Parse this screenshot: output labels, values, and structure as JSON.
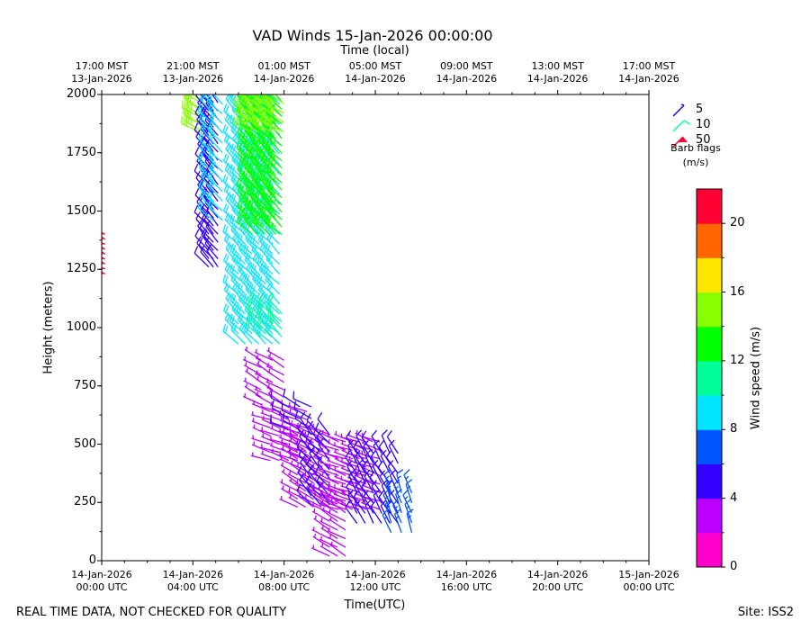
{
  "chart_data": {
    "type": "wind_barbs",
    "title": "VAD Winds 15-Jan-2026 00:00:00",
    "xlabel": "Time(UTC)",
    "top_xlabel": "Time (local)",
    "ylabel": "Height (meters)",
    "xlim_hours": [
      0,
      24
    ],
    "ylim": [
      0,
      2000
    ],
    "y_ticks": [
      "0",
      "250",
      "500",
      "750",
      "1000",
      "1250",
      "1500",
      "1750",
      "2000"
    ],
    "x_ticks_bottom": [
      {
        "l1": "14-Jan-2026",
        "l2": "00:00 UTC"
      },
      {
        "l1": "14-Jan-2026",
        "l2": "04:00 UTC"
      },
      {
        "l1": "14-Jan-2026",
        "l2": "08:00 UTC"
      },
      {
        "l1": "14-Jan-2026",
        "l2": "12:00 UTC"
      },
      {
        "l1": "14-Jan-2026",
        "l2": "16:00 UTC"
      },
      {
        "l1": "14-Jan-2026",
        "l2": "20:00 UTC"
      },
      {
        "l1": "15-Jan-2026",
        "l2": "00:00 UTC"
      }
    ],
    "x_ticks_top": [
      {
        "l1": "17:00 MST",
        "l2": "13-Jan-2026"
      },
      {
        "l1": "21:00 MST",
        "l2": "13-Jan-2026"
      },
      {
        "l1": "01:00 MST",
        "l2": "14-Jan-2026"
      },
      {
        "l1": "05:00 MST",
        "l2": "14-Jan-2026"
      },
      {
        "l1": "09:00 MST",
        "l2": "14-Jan-2026"
      },
      {
        "l1": "13:00 MST",
        "l2": "14-Jan-2026"
      },
      {
        "l1": "17:00 MST",
        "l2": "14-Jan-2026"
      }
    ],
    "legend": {
      "entries": [
        {
          "label": "5",
          "color": "#2200ff"
        },
        {
          "label": "10",
          "color": "#00ff99"
        },
        {
          "label": "50",
          "color": "#ff0033"
        }
      ],
      "note_line1": "Barb flags",
      "note_line2": "(m/s)"
    },
    "colorbar": {
      "label": "Wind speed (m/s)",
      "min": 0,
      "max": 22,
      "ticks": [
        "0",
        "4",
        "8",
        "12",
        "16",
        "20"
      ],
      "colors": [
        "#ff00cc",
        "#bb00ff",
        "#3300ff",
        "#0055ff",
        "#00e5ff",
        "#00ff99",
        "#00ff00",
        "#88ff00",
        "#ffe600",
        "#ff6600",
        "#ff0033"
      ]
    },
    "barb_groups": [
      {
        "name": "early-red",
        "t0": 0.05,
        "t1": 0.15,
        "h0": 1230,
        "h1": 1400,
        "speed": 21,
        "dir": 300,
        "cols": 2,
        "rows": 9
      },
      {
        "name": "green-top-left",
        "t0": 4.3,
        "t1": 4.45,
        "h0": 1840,
        "h1": 2000,
        "speed": 15,
        "dir": 300,
        "cols": 2,
        "rows": 6
      },
      {
        "name": "blue-column",
        "t0": 4.7,
        "t1": 5.1,
        "h0": 1260,
        "h1": 2000,
        "speed": 5,
        "dir": 320,
        "cols": 3,
        "rows": 22
      },
      {
        "name": "cyan-column",
        "t0": 4.9,
        "t1": 5.3,
        "h0": 1460,
        "h1": 2000,
        "speed": 9,
        "dir": 315,
        "cols": 2,
        "rows": 14
      },
      {
        "name": "cyan-wide",
        "t0": 6.0,
        "t1": 7.8,
        "h0": 930,
        "h1": 2000,
        "speed": 9,
        "dir": 315,
        "cols": 7,
        "rows": 26
      },
      {
        "name": "green-wide",
        "t0": 6.6,
        "t1": 7.9,
        "h0": 1400,
        "h1": 2000,
        "speed": 13,
        "dir": 315,
        "cols": 6,
        "rows": 20
      },
      {
        "name": "lime-top",
        "t0": 6.6,
        "t1": 8.0,
        "h0": 1840,
        "h1": 2000,
        "speed": 15,
        "dir": 300,
        "cols": 6,
        "rows": 5
      },
      {
        "name": "green-low",
        "t0": 7.0,
        "t1": 7.9,
        "h0": 960,
        "h1": 1060,
        "speed": 11,
        "dir": 315,
        "cols": 3,
        "rows": 4
      },
      {
        "name": "purple-lower",
        "t0": 7.0,
        "t1": 8.0,
        "h0": 670,
        "h1": 860,
        "speed": 3,
        "dir": 300,
        "cols": 3,
        "rows": 7
      },
      {
        "name": "magenta-mid",
        "t0": 7.4,
        "t1": 9.0,
        "h0": 430,
        "h1": 640,
        "speed": 2,
        "dir": 290,
        "cols": 5,
        "rows": 7
      },
      {
        "name": "blue-mid",
        "t0": 8.2,
        "t1": 9.2,
        "h0": 560,
        "h1": 660,
        "speed": 5,
        "dir": 300,
        "cols": 3,
        "rows": 3
      },
      {
        "name": "purple-mid",
        "t0": 8.6,
        "t1": 10.0,
        "h0": 230,
        "h1": 540,
        "speed": 3,
        "dir": 300,
        "cols": 5,
        "rows": 10
      },
      {
        "name": "blue-mid2",
        "t0": 9.2,
        "t1": 10.0,
        "h0": 240,
        "h1": 540,
        "speed": 5,
        "dir": 320,
        "cols": 3,
        "rows": 9
      },
      {
        "name": "purple-low",
        "t0": 10.0,
        "t1": 10.7,
        "h0": 20,
        "h1": 280,
        "speed": 3,
        "dir": 300,
        "cols": 3,
        "rows": 8
      },
      {
        "name": "purple-right",
        "t0": 10.4,
        "t1": 12.2,
        "h0": 220,
        "h1": 510,
        "speed": 3,
        "dir": 290,
        "cols": 7,
        "rows": 9
      },
      {
        "name": "blue-right",
        "t0": 11.2,
        "t1": 13.0,
        "h0": 160,
        "h1": 460,
        "speed": 5,
        "dir": 330,
        "cols": 6,
        "rows": 8
      },
      {
        "name": "blue-far",
        "t0": 12.7,
        "t1": 13.6,
        "h0": 120,
        "h1": 290,
        "speed": 7,
        "dir": 340,
        "cols": 3,
        "rows": 5
      }
    ]
  },
  "footer": {
    "left": "REAL TIME DATA, NOT CHECKED FOR QUALITY",
    "right": "Site: ISS2"
  }
}
